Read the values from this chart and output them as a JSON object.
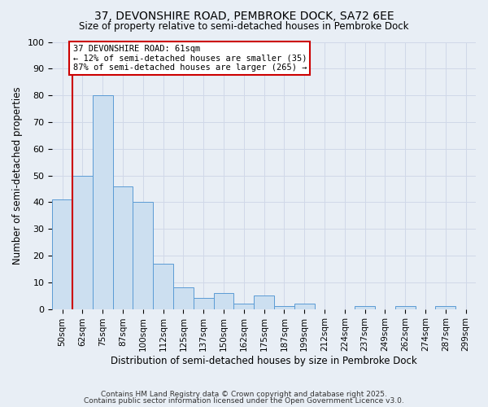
{
  "title1": "37, DEVONSHIRE ROAD, PEMBROKE DOCK, SA72 6EE",
  "title2": "Size of property relative to semi-detached houses in Pembroke Dock",
  "xlabel": "Distribution of semi-detached houses by size in Pembroke Dock",
  "ylabel": "Number of semi-detached properties",
  "categories": [
    "50sqm",
    "62sqm",
    "75sqm",
    "87sqm",
    "100sqm",
    "112sqm",
    "125sqm",
    "137sqm",
    "150sqm",
    "162sqm",
    "175sqm",
    "187sqm",
    "199sqm",
    "212sqm",
    "224sqm",
    "237sqm",
    "249sqm",
    "262sqm",
    "274sqm",
    "287sqm",
    "299sqm"
  ],
  "values": [
    41,
    50,
    80,
    46,
    40,
    17,
    8,
    4,
    6,
    2,
    5,
    1,
    2,
    0,
    0,
    1,
    0,
    1,
    0,
    1,
    0
  ],
  "bar_color": "#ccdff0",
  "bar_edge_color": "#5b9bd5",
  "annotation_line1": "37 DEVONSHIRE ROAD: 61sqm",
  "annotation_line2": "← 12% of semi-detached houses are smaller (35)",
  "annotation_line3": "87% of semi-detached houses are larger (265) →",
  "annotation_box_color": "#ffffff",
  "annotation_border_color": "#cc0000",
  "vline_color": "#cc0000",
  "vline_x": 0.5,
  "ylim": [
    0,
    100
  ],
  "yticks": [
    0,
    10,
    20,
    30,
    40,
    50,
    60,
    70,
    80,
    90,
    100
  ],
  "grid_color": "#d0d8e8",
  "background_color": "#e8eef5",
  "footer1": "Contains HM Land Registry data © Crown copyright and database right 2025.",
  "footer2": "Contains public sector information licensed under the Open Government Licence v3.0."
}
